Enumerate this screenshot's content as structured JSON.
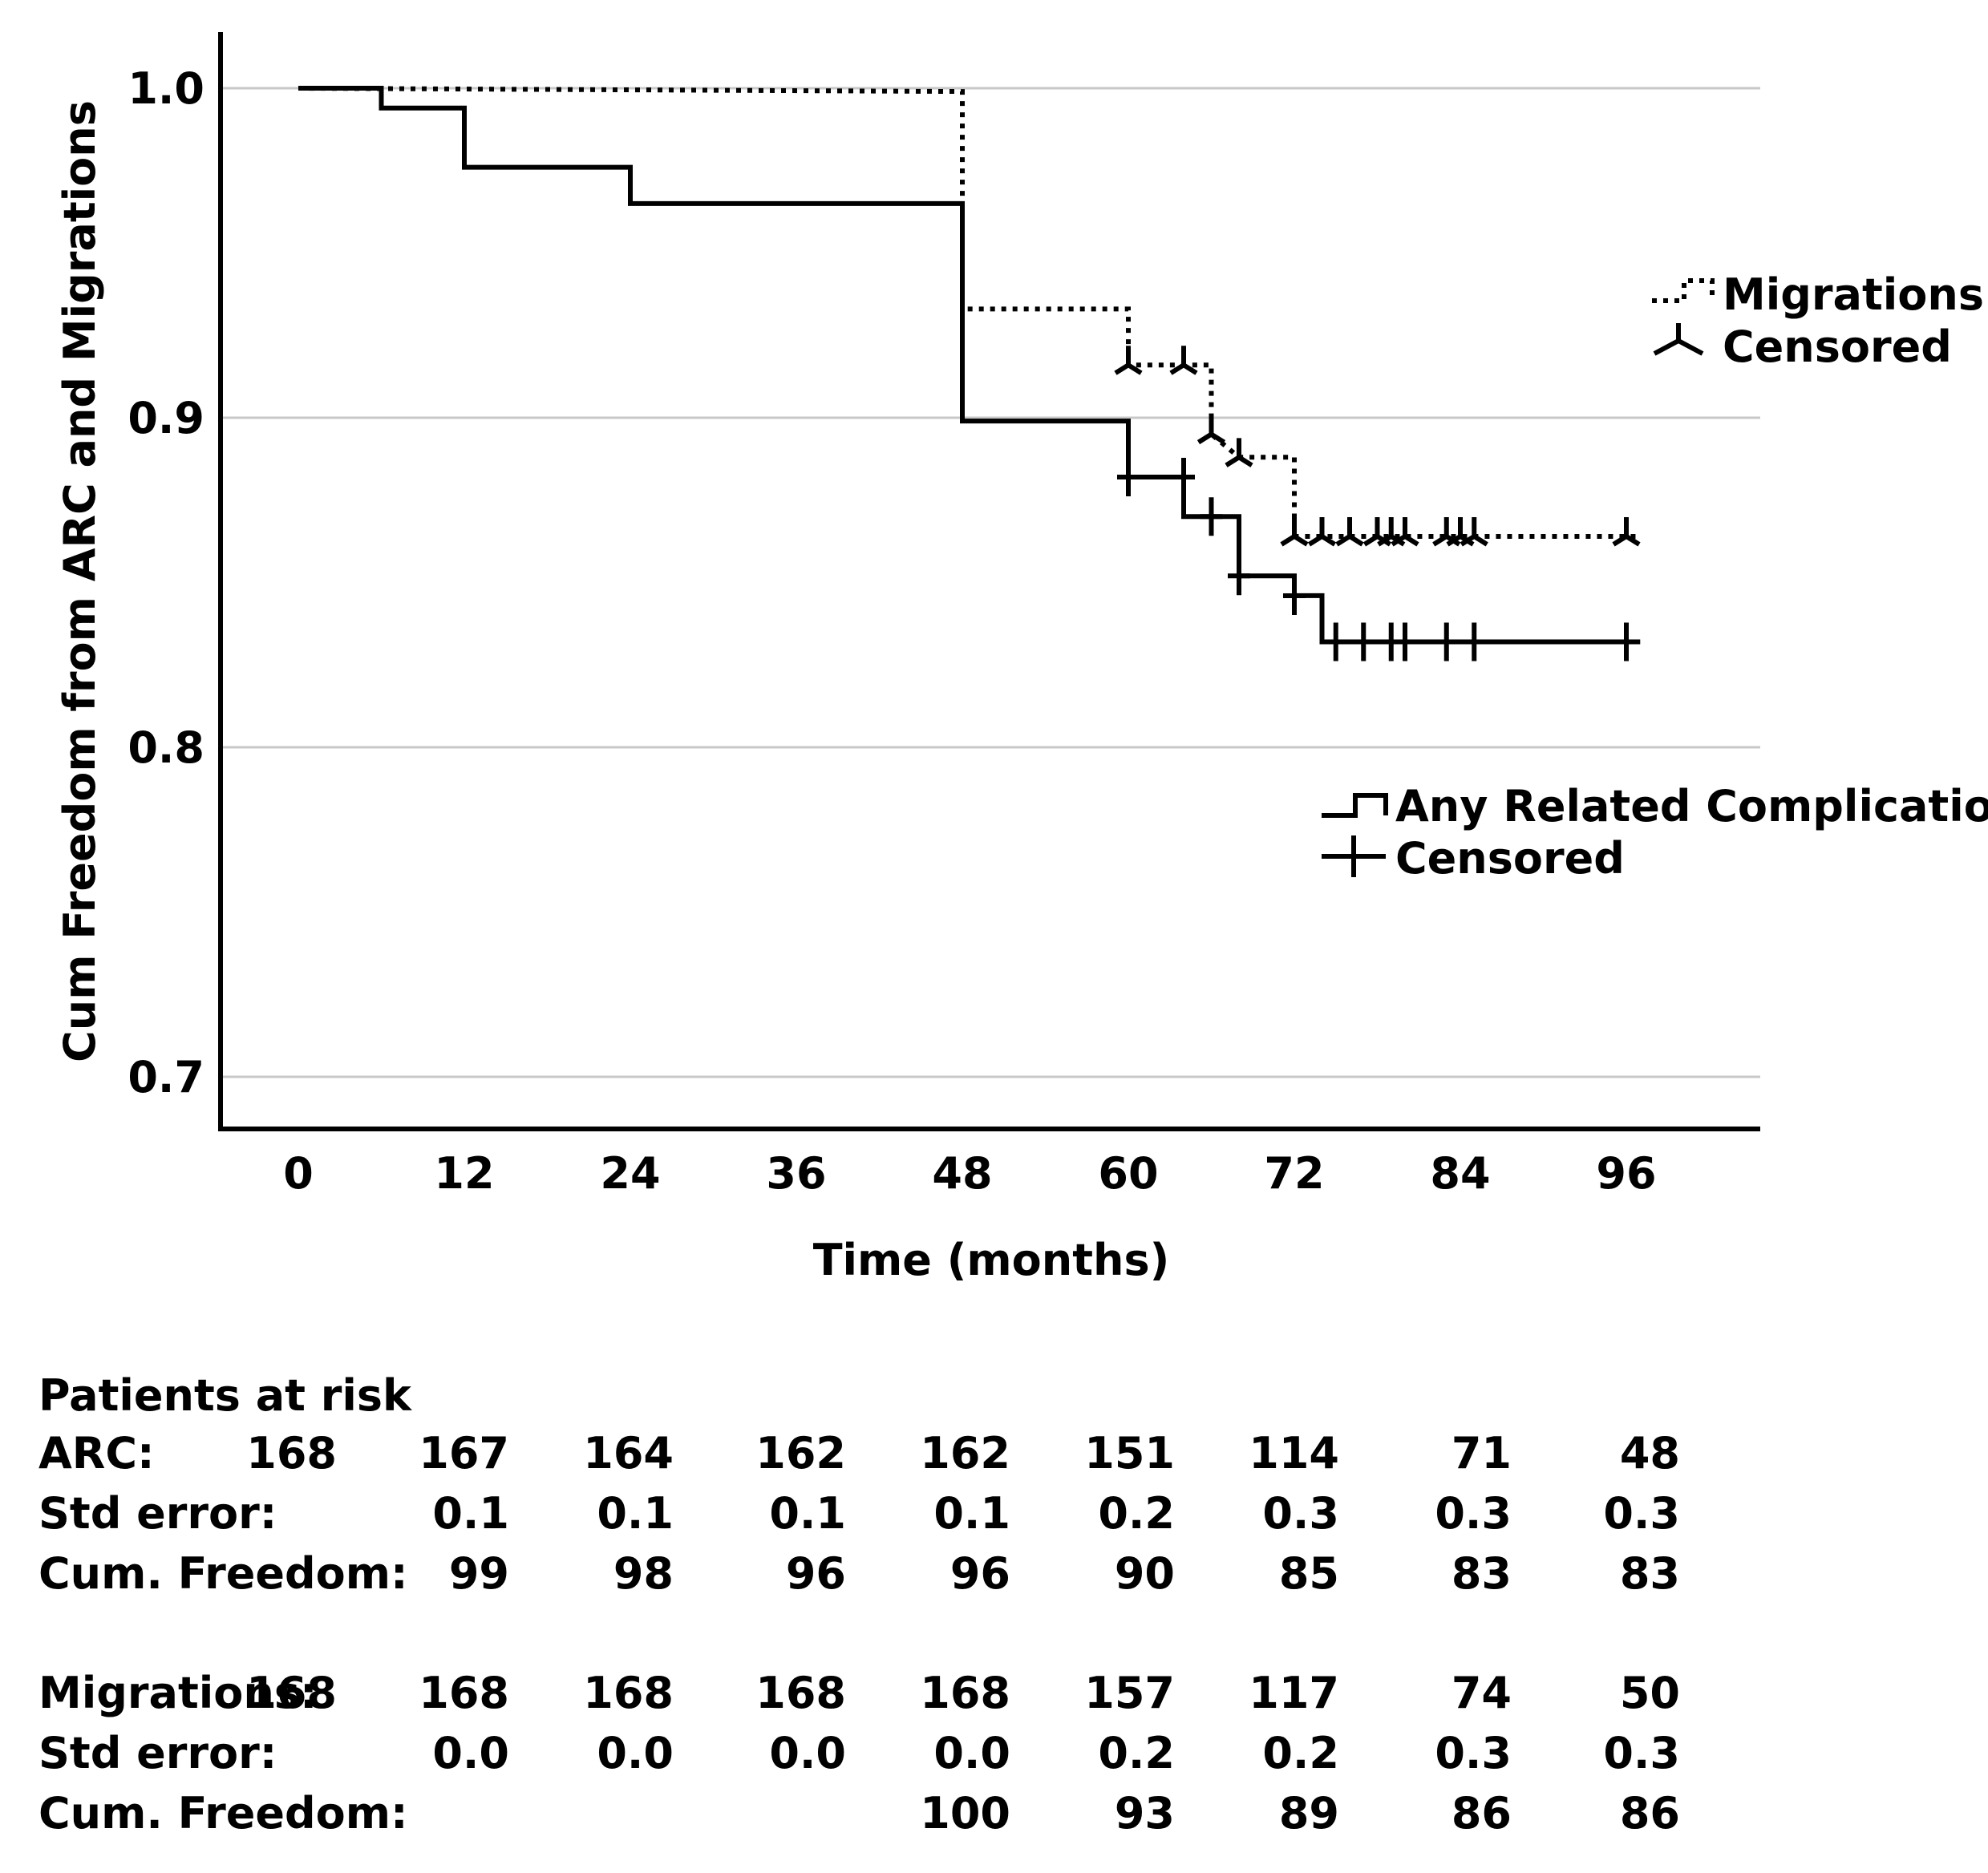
{
  "chart_data": {
    "type": "line",
    "subtype": "kaplan-meier step",
    "ylabel": "Cum Freedom from ARC and Migrations",
    "xlabel": "Time (months)",
    "xlim": [
      0,
      96
    ],
    "ylim": [
      0.7,
      1.0
    ],
    "x_ticks": [
      "0",
      "12",
      "24",
      "36",
      "48",
      "60",
      "72",
      "84",
      "96"
    ],
    "y_ticks": [
      "1.0",
      "0.9",
      "0.8",
      "0.7"
    ],
    "grid": "horizontal",
    "series": [
      {
        "name": "Migrations",
        "line_style": "dotted",
        "censor_label": "Censored",
        "censor_marker": "inverted-Y",
        "steps": [
          [
            0,
            1.0
          ],
          [
            48,
            0.999
          ],
          [
            48,
            0.933
          ],
          [
            60,
            0.933
          ],
          [
            60,
            0.916
          ],
          [
            66,
            0.916
          ],
          [
            66,
            0.895
          ],
          [
            68,
            0.888
          ],
          [
            72,
            0.888
          ],
          [
            72,
            0.864
          ],
          [
            97,
            0.864
          ]
        ],
        "censored": [
          [
            60,
            0.916
          ],
          [
            64,
            0.916
          ],
          [
            66,
            0.895
          ],
          [
            68,
            0.888
          ],
          [
            72,
            0.864
          ],
          [
            74,
            0.864
          ],
          [
            76,
            0.864
          ],
          [
            78,
            0.864
          ],
          [
            79,
            0.864
          ],
          [
            80,
            0.864
          ],
          [
            83,
            0.864
          ],
          [
            84,
            0.864
          ],
          [
            85,
            0.864
          ],
          [
            96,
            0.864
          ]
        ]
      },
      {
        "name": "Any Related Complication",
        "line_style": "solid",
        "censor_label": "Censored",
        "censor_marker": "plus",
        "steps": [
          [
            0,
            1.0
          ],
          [
            6,
            1.0
          ],
          [
            6,
            0.994
          ],
          [
            12,
            0.994
          ],
          [
            12,
            0.976
          ],
          [
            24,
            0.976
          ],
          [
            24,
            0.965
          ],
          [
            48,
            0.965
          ],
          [
            48,
            0.899
          ],
          [
            60,
            0.899
          ],
          [
            60,
            0.882
          ],
          [
            64,
            0.882
          ],
          [
            64,
            0.87
          ],
          [
            68,
            0.87
          ],
          [
            68,
            0.852
          ],
          [
            72,
            0.852
          ],
          [
            72,
            0.846
          ],
          [
            74,
            0.846
          ],
          [
            74,
            0.832
          ],
          [
            97,
            0.832
          ]
        ],
        "censored": [
          [
            60,
            0.882
          ],
          [
            64,
            0.882
          ],
          [
            66,
            0.87
          ],
          [
            68,
            0.852
          ],
          [
            72,
            0.846
          ],
          [
            75,
            0.832
          ],
          [
            77,
            0.832
          ],
          [
            79,
            0.832
          ],
          [
            80,
            0.832
          ],
          [
            83,
            0.832
          ],
          [
            85,
            0.832
          ],
          [
            96,
            0.832
          ]
        ]
      }
    ]
  },
  "legend": {
    "migrations": {
      "label": "Migrations",
      "censored": "Censored"
    },
    "arc": {
      "label": "Any Related Complication",
      "censored": "Censored"
    }
  },
  "risk_table": {
    "title": "Patients at risk",
    "rows": [
      {
        "label": "ARC:",
        "values": [
          "168",
          "167",
          "164",
          "162",
          "162",
          "151",
          "114",
          "71",
          "48"
        ]
      },
      {
        "label": "Std error:",
        "values": [
          "",
          "0.1",
          "0.1",
          "0.1",
          "0.1",
          "0.2",
          "0.3",
          "0.3",
          "0.3"
        ]
      },
      {
        "label": "Cum. Freedom:",
        "values": [
          "",
          "99",
          "98",
          "96",
          "96",
          "90",
          "85",
          "83",
          "83"
        ]
      },
      {
        "label": "Migrations:",
        "values": [
          "168",
          "168",
          "168",
          "168",
          "168",
          "157",
          "117",
          "74",
          "50"
        ]
      },
      {
        "label": "Std error:",
        "values": [
          "",
          "0.0",
          "0.0",
          "0.0",
          "0.0",
          "0.2",
          "0.2",
          "0.3",
          "0.3"
        ]
      },
      {
        "label": "Cum. Freedom:",
        "values": [
          "",
          "",
          "",
          "",
          "100",
          "93",
          "89",
          "86",
          "86"
        ]
      }
    ]
  }
}
